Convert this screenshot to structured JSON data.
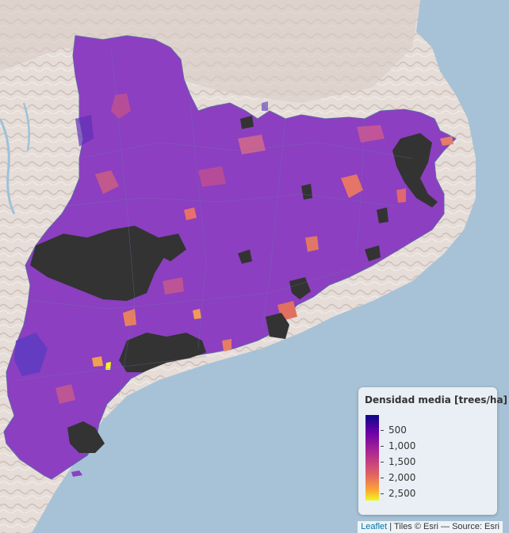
{
  "legend": {
    "title": "Densidad media [trees/ha]",
    "ticks": [
      "500",
      "1,000",
      "1,500",
      "2,000",
      "2,500"
    ],
    "colors": [
      "#0d0887",
      "#6a00a8",
      "#b12a90",
      "#e16462",
      "#fca636",
      "#f0f921"
    ]
  },
  "attribution": {
    "link": "Leaflet",
    "text": " | Tiles © Esri — Source: Esri"
  },
  "map": {
    "sea_color": "#a7c2d6",
    "land_color": "#e4dcd6",
    "no_data_color": "#333333",
    "region_main_color": "#8c3fc0"
  }
}
